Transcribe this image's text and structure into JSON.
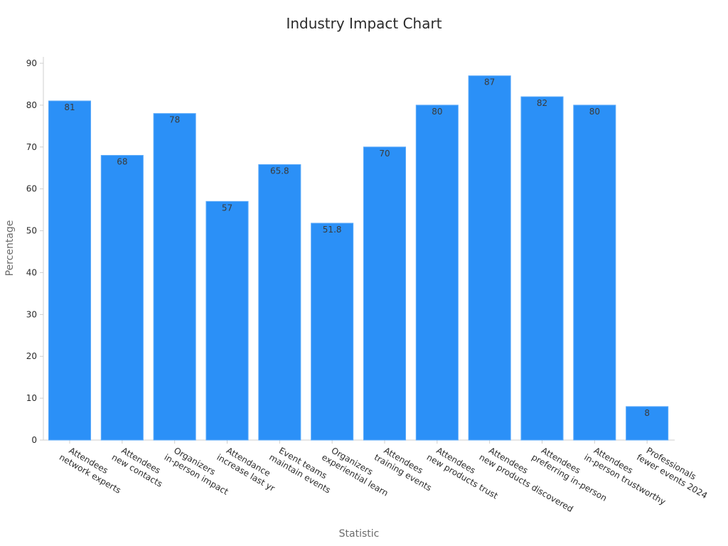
{
  "chart_data": {
    "type": "bar",
    "title": "Industry Impact Chart",
    "xlabel": "Statistic",
    "ylabel": "Percentage",
    "ylim": [
      0,
      90
    ],
    "yticks": [
      0,
      10,
      20,
      30,
      40,
      50,
      60,
      70,
      80,
      90
    ],
    "grid": false,
    "bar_color": "#2b90f7",
    "categories": [
      [
        "Attendees",
        "network experts"
      ],
      [
        "Attendees",
        "new contacts"
      ],
      [
        "Organizers",
        "in-person impact"
      ],
      [
        "Attendance",
        "increase last yr"
      ],
      [
        "Event teams",
        "maintain events"
      ],
      [
        "Organizers",
        "experiential learn"
      ],
      [
        "Attendees",
        "training events"
      ],
      [
        "Attendees",
        "new products trust"
      ],
      [
        "Attendees",
        "new products discovered"
      ],
      [
        "Attendees",
        "preferring in-person"
      ],
      [
        "Attendees",
        "in-person trustworthy"
      ],
      [
        "Professionals",
        "fewer events 2024"
      ]
    ],
    "values": [
      81,
      68,
      78,
      57,
      65.8,
      51.8,
      70,
      80,
      87,
      82,
      80,
      8
    ],
    "value_labels": [
      "81",
      "68",
      "78",
      "57",
      "65.8",
      "51.8",
      "70",
      "80",
      "87",
      "82",
      "80",
      "8"
    ]
  }
}
